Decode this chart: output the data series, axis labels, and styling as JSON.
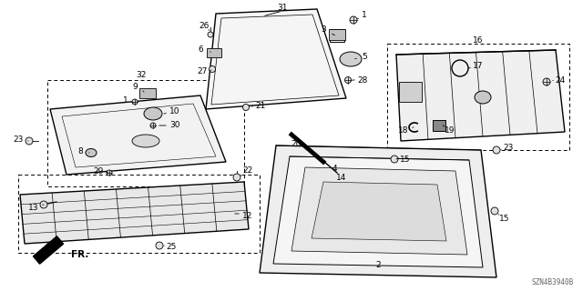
{
  "diagram_code": "SZN4B3940B",
  "background_color": "#ffffff",
  "line_color": "#000000"
}
